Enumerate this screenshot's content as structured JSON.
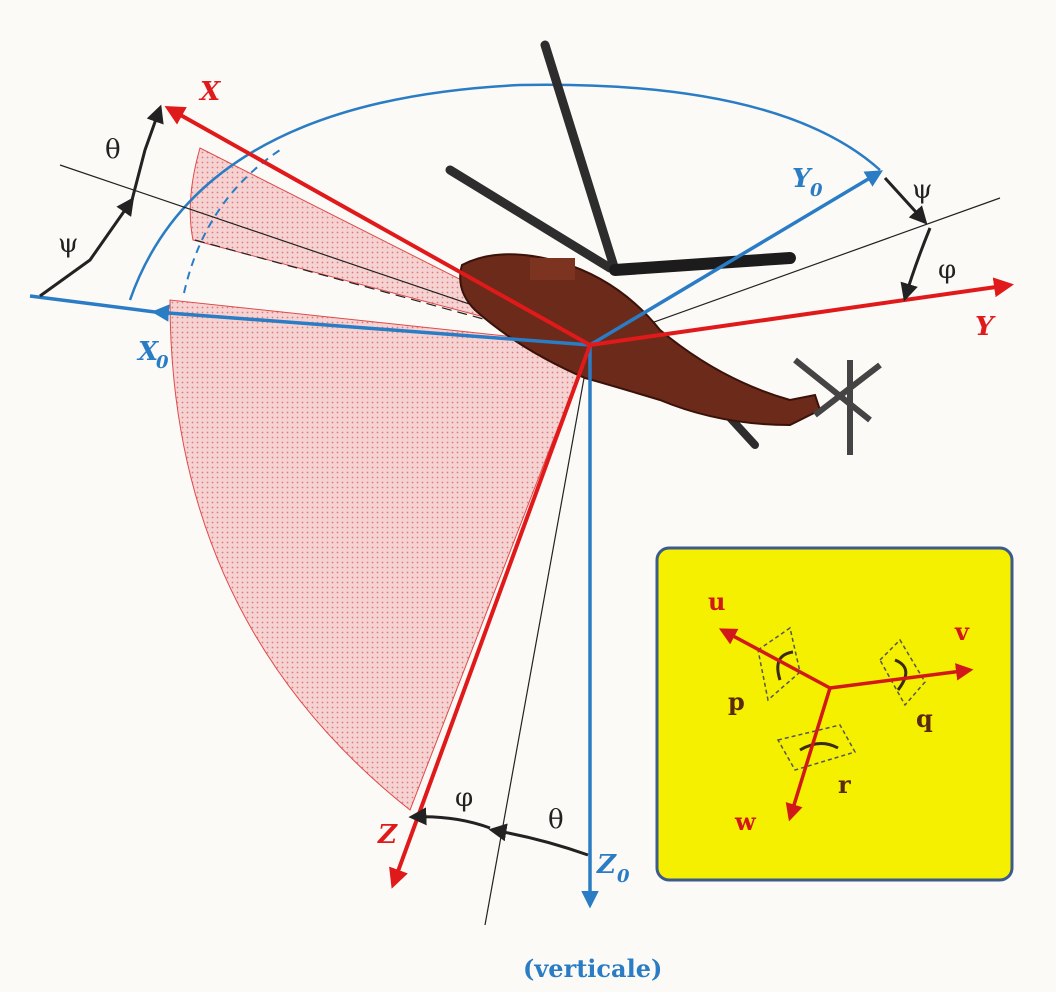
{
  "axes": {
    "body_x": "X",
    "body_y": "Y",
    "body_z": "Z",
    "ref_x": "X",
    "ref_y": "Y",
    "ref_z": "Z",
    "ref_subscript": "0"
  },
  "angles": {
    "yaw_top": "θ",
    "yaw_left": "ψ",
    "psi_right": "ψ",
    "phi_right": "φ",
    "phi_bottom": "φ",
    "theta_bottom": "θ"
  },
  "vertical_label": "(verticale)",
  "inset": {
    "u": "u",
    "v": "v",
    "w": "w",
    "p": "p",
    "q": "q",
    "r": "r"
  },
  "colors": {
    "body_axes": "#e01a1a",
    "reference_axes": "#2a7cc4",
    "inset_bg": "#f5ef00",
    "sector_fill": "#f3c6c6",
    "helicopter": "#6b2a1a"
  },
  "icons": [
    "helicopter-icon",
    "rotation-p-icon",
    "rotation-q-icon",
    "rotation-r-icon"
  ]
}
